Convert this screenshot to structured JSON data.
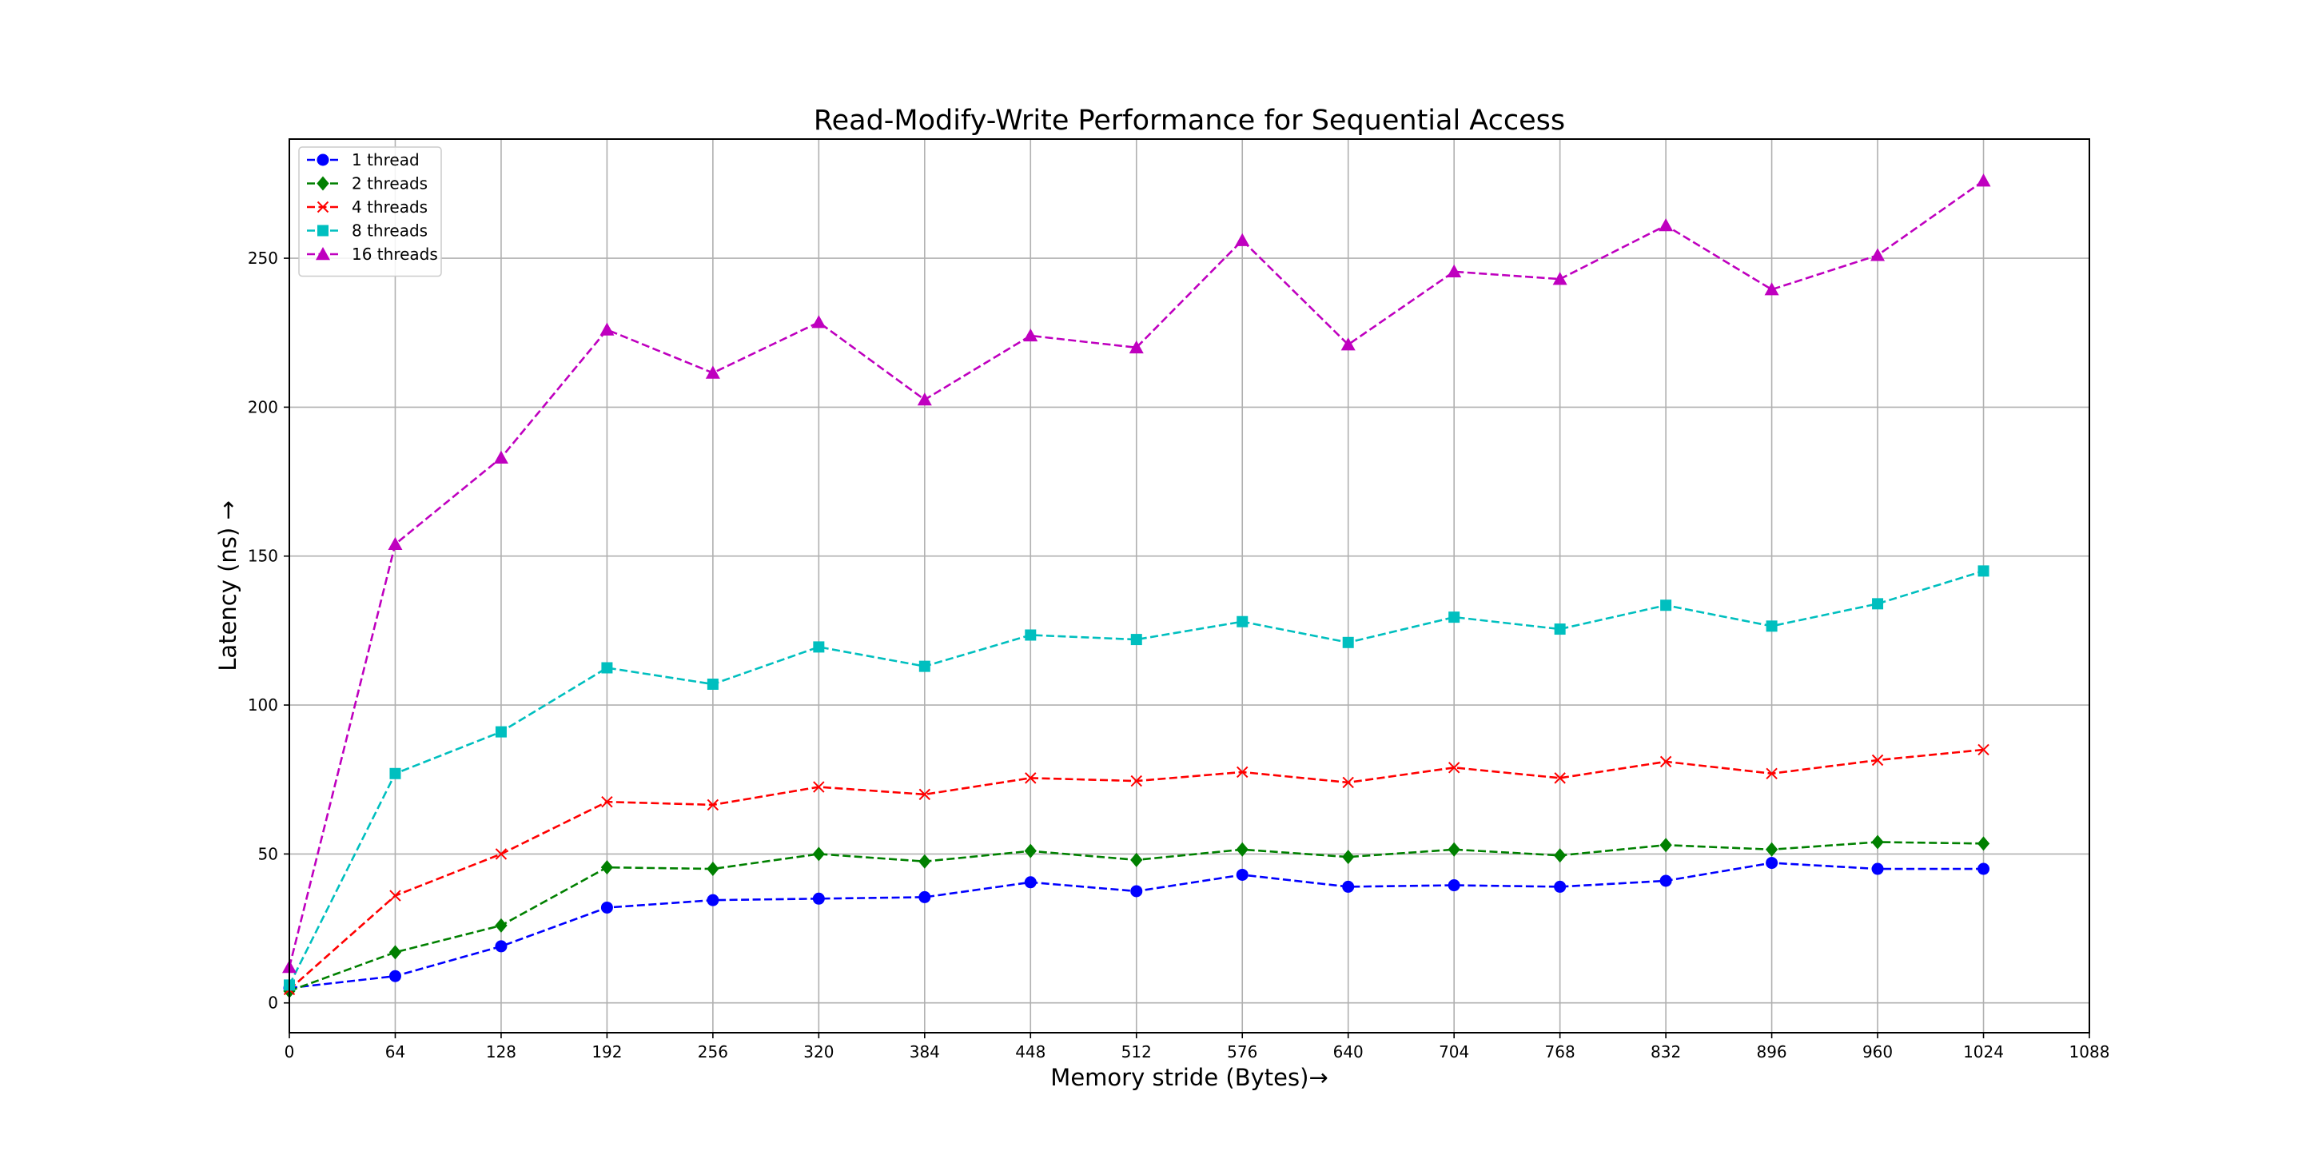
{
  "chart_data": {
    "type": "line",
    "title": "Read-Modify-Write Performance for Sequential Access",
    "xlabel": "Memory stride (Bytes)→",
    "ylabel": "Latency (ns) →",
    "xlim": [
      0,
      1088
    ],
    "ylim": [
      -10,
      290
    ],
    "xticks": [
      0,
      64,
      128,
      192,
      256,
      320,
      384,
      448,
      512,
      576,
      640,
      704,
      768,
      832,
      896,
      960,
      1024,
      1088
    ],
    "yticks": [
      0,
      50,
      100,
      150,
      200,
      250
    ],
    "grid": true,
    "legend_position": "top-left",
    "x": [
      0,
      64,
      128,
      192,
      256,
      320,
      384,
      448,
      512,
      576,
      640,
      704,
      768,
      832,
      896,
      960,
      1024
    ],
    "series": [
      {
        "name": "1 thread",
        "color": "#0000ff",
        "marker": "circle",
        "values": [
          5,
          9,
          19,
          32,
          34.5,
          35,
          35.5,
          40.5,
          37.5,
          43,
          39,
          39.5,
          39,
          41,
          47,
          45,
          45
        ]
      },
      {
        "name": "2 threads",
        "color": "#008000",
        "marker": "diamond",
        "values": [
          4,
          17,
          26,
          45.5,
          45,
          50,
          47.5,
          51,
          48,
          51.5,
          49,
          51.5,
          49.5,
          53,
          51.5,
          54,
          53.5
        ]
      },
      {
        "name": "4 threads",
        "color": "#ff0000",
        "marker": "x",
        "values": [
          4.5,
          36,
          50,
          67.5,
          66.5,
          72.5,
          70,
          75.5,
          74.5,
          77.5,
          74,
          79,
          75.5,
          81,
          77,
          81.5,
          85
        ]
      },
      {
        "name": "8 threads",
        "color": "#00bfbf",
        "marker": "square",
        "values": [
          6,
          77,
          91,
          112.5,
          107,
          119.5,
          113,
          123.5,
          122,
          128,
          121,
          129.5,
          125.5,
          133.5,
          126.5,
          134,
          145
        ]
      },
      {
        "name": "16 threads",
        "color": "#bf00bf",
        "marker": "triangle",
        "values": [
          12,
          154,
          183,
          226,
          211.5,
          228.5,
          202.5,
          224,
          220,
          256,
          221,
          245.5,
          243,
          261,
          239.5,
          251,
          276
        ]
      }
    ]
  }
}
